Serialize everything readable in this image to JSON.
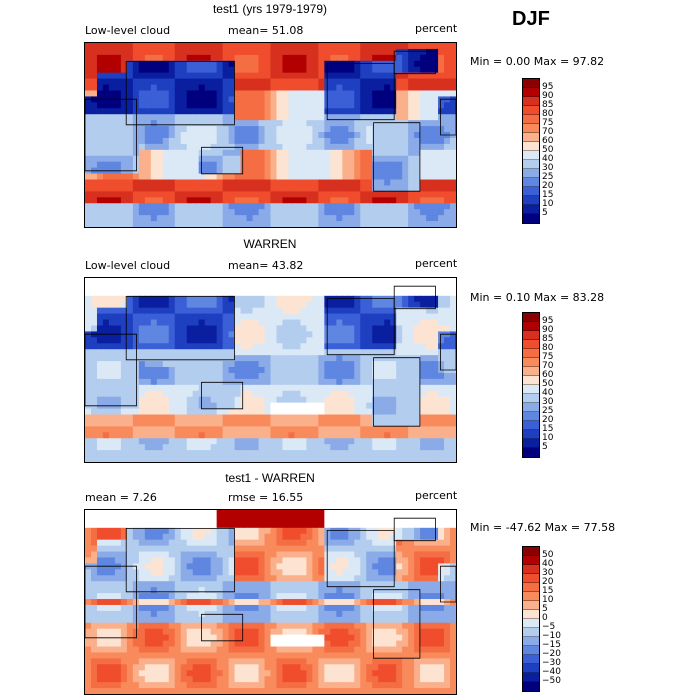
{
  "season": "DJF",
  "panels": [
    {
      "title": "test1 (yrs 1979-1979)",
      "left": "Low-level cloud",
      "center": "mean=  51.08",
      "right": "percent",
      "stats": "Min =   0.00 Max =  97.82",
      "ticks": [
        "95",
        "90",
        "85",
        "80",
        "75",
        "70",
        "60",
        "50",
        "40",
        "30",
        "25",
        "20",
        "15",
        "10",
        "5"
      ],
      "colors": [
        "#8b0000",
        "#b20000",
        "#d7301f",
        "#ef4d2d",
        "#f46d43",
        "#f88a5c",
        "#fbb08c",
        "#fde4d2",
        "#dbe9f6",
        "#b3cdee",
        "#8aaae8",
        "#5f86e0",
        "#3a5fd6",
        "#1e3fc0",
        "#0a1fa0",
        "#00007f"
      ],
      "field": "model"
    },
    {
      "title": "WARREN",
      "left": "Low-level cloud",
      "center": "mean=  43.82",
      "right": "percent",
      "stats": "Min =   0.10 Max =  83.28",
      "ticks": [
        "95",
        "90",
        "85",
        "80",
        "75",
        "70",
        "60",
        "50",
        "40",
        "30",
        "25",
        "20",
        "15",
        "10",
        "5"
      ],
      "colors": [
        "#8b0000",
        "#b20000",
        "#d7301f",
        "#ef4d2d",
        "#f46d43",
        "#f88a5c",
        "#fbb08c",
        "#fde4d2",
        "#dbe9f6",
        "#b3cdee",
        "#8aaae8",
        "#5f86e0",
        "#3a5fd6",
        "#1e3fc0",
        "#0a1fa0",
        "#00007f"
      ],
      "field": "obs"
    },
    {
      "title": "test1 - WARREN",
      "left": "mean =    7.26",
      "center": "rmse =   16.55",
      "right": "percent",
      "stats": "Min = -47.62 Max =  77.58",
      "ticks": [
        "50",
        "40",
        "30",
        "20",
        "15",
        "10",
        "5",
        "0",
        "−5",
        "−10",
        "−15",
        "−20",
        "−30",
        "−40",
        "−50"
      ],
      "colors": [
        "#8b0000",
        "#b20000",
        "#d7301f",
        "#ef4d2d",
        "#f46d43",
        "#f88a5c",
        "#fbb08c",
        "#fde4d2",
        "#dbe9f6",
        "#b3cdee",
        "#8aaae8",
        "#5f86e0",
        "#3a5fd6",
        "#1e3fc0",
        "#0a1fa0",
        "#00007f"
      ],
      "field": "diff"
    }
  ],
  "chart_data": [
    {
      "type": "heatmap",
      "title": "test1 (yrs 1979-1979)",
      "variable": "Low-level cloud",
      "units": "percent",
      "mean": 51.08,
      "min": 0.0,
      "max": 97.82,
      "levels": [
        5,
        10,
        15,
        20,
        25,
        30,
        40,
        50,
        60,
        70,
        75,
        80,
        85,
        90,
        95
      ]
    },
    {
      "type": "heatmap",
      "title": "WARREN",
      "variable": "Low-level cloud",
      "units": "percent",
      "mean": 43.82,
      "min": 0.1,
      "max": 83.28,
      "levels": [
        5,
        10,
        15,
        20,
        25,
        30,
        40,
        50,
        60,
        70,
        75,
        80,
        85,
        90,
        95
      ]
    },
    {
      "type": "heatmap",
      "title": "test1 - WARREN",
      "units": "percent",
      "mean": 7.26,
      "rmse": 16.55,
      "min": -47.62,
      "max": 77.58,
      "levels": [
        -50,
        -40,
        -30,
        -20,
        -15,
        -10,
        -5,
        0,
        5,
        10,
        15,
        20,
        30,
        40,
        50
      ]
    }
  ]
}
